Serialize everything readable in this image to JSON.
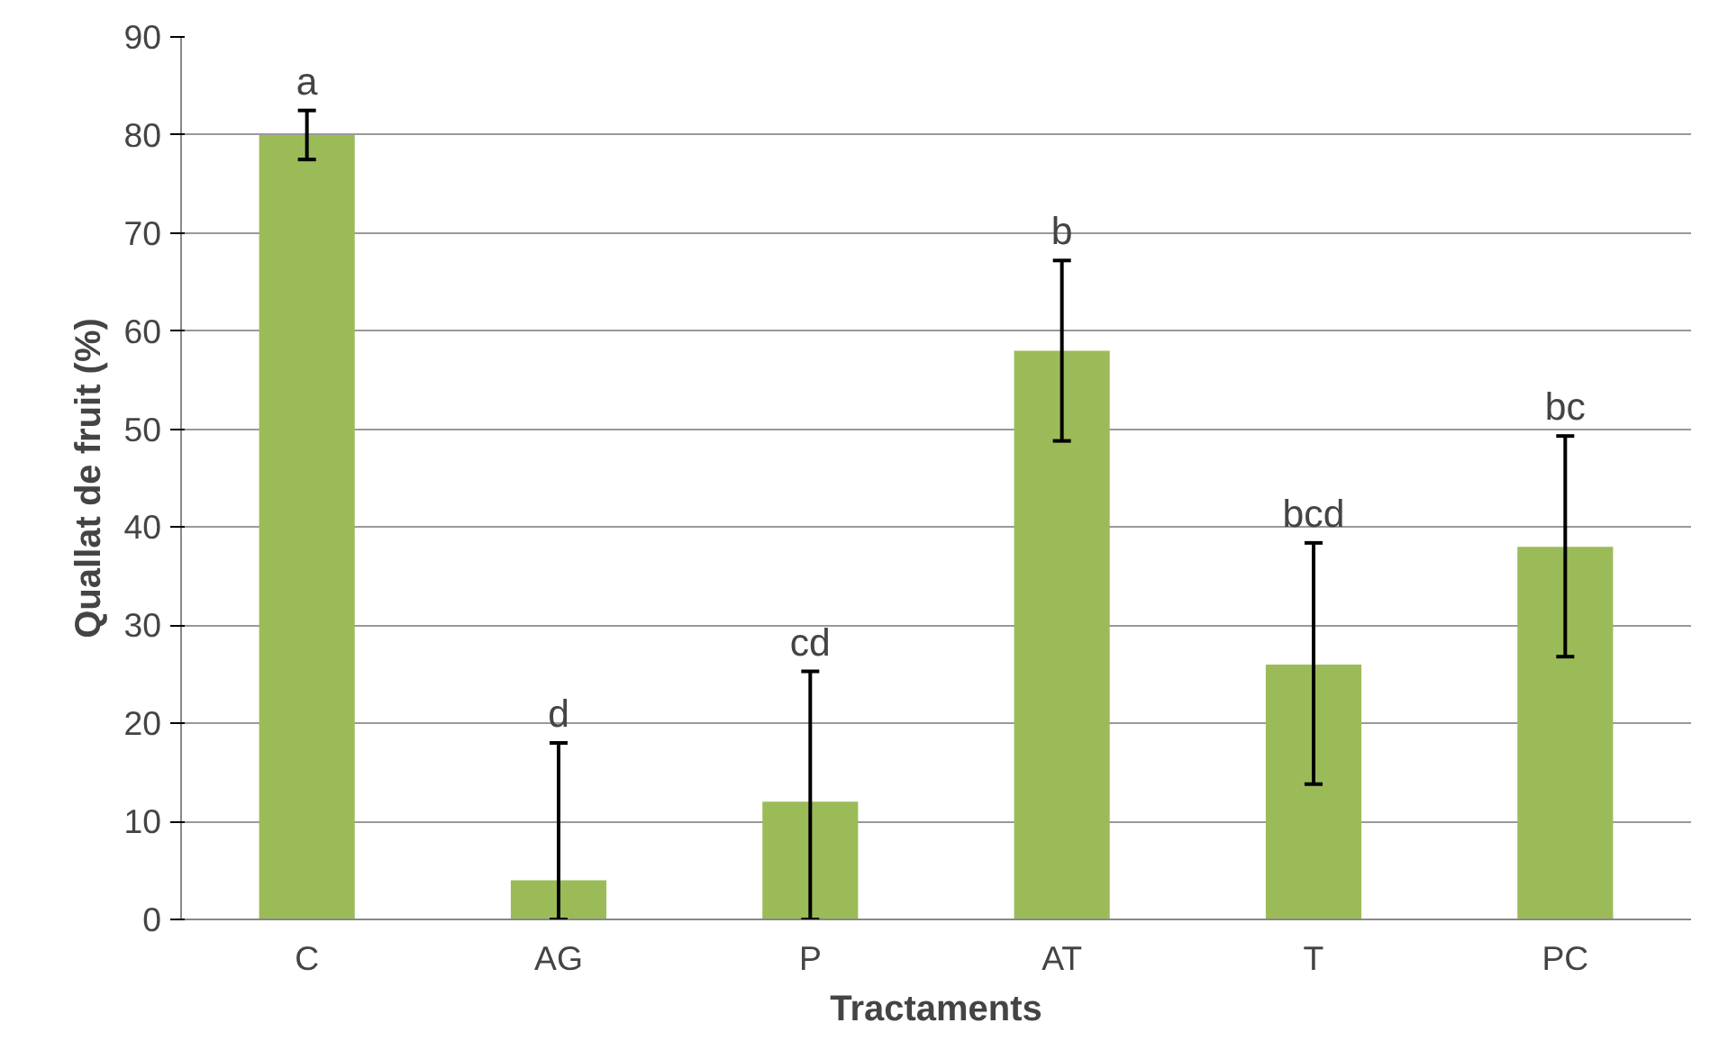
{
  "chart_data": {
    "type": "bar",
    "xlabel": "Tractaments",
    "ylabel": "Quallat de fruit (%)",
    "categories": [
      "C",
      "AG",
      "P",
      "AT",
      "T",
      "PC"
    ],
    "values": [
      80,
      4,
      12,
      58,
      26,
      38
    ],
    "errors": [
      [
        77.5,
        82.5
      ],
      [
        0,
        18
      ],
      [
        0,
        25.3
      ],
      [
        48.8,
        67.2
      ],
      [
        13.8,
        38.4
      ],
      [
        26.8,
        49.3
      ]
    ],
    "color": "#9bbb59",
    "ylim": [
      0,
      90
    ],
    "yticks": [
      0,
      10,
      20,
      30,
      40,
      50,
      60,
      70,
      80,
      90
    ],
    "grid": "y",
    "annotations": [
      {
        "text": "a",
        "x": "C",
        "y": 82.5
      },
      {
        "text": "d",
        "x": "AG",
        "y": 18
      },
      {
        "text": "cd",
        "x": "P",
        "y": 25.3
      },
      {
        "text": "b",
        "x": "AT",
        "y": 67.2
      },
      {
        "text": "bcd",
        "x": "T",
        "y": 38.4
      },
      {
        "text": "bc",
        "x": "PC",
        "y": 49.3
      }
    ]
  }
}
